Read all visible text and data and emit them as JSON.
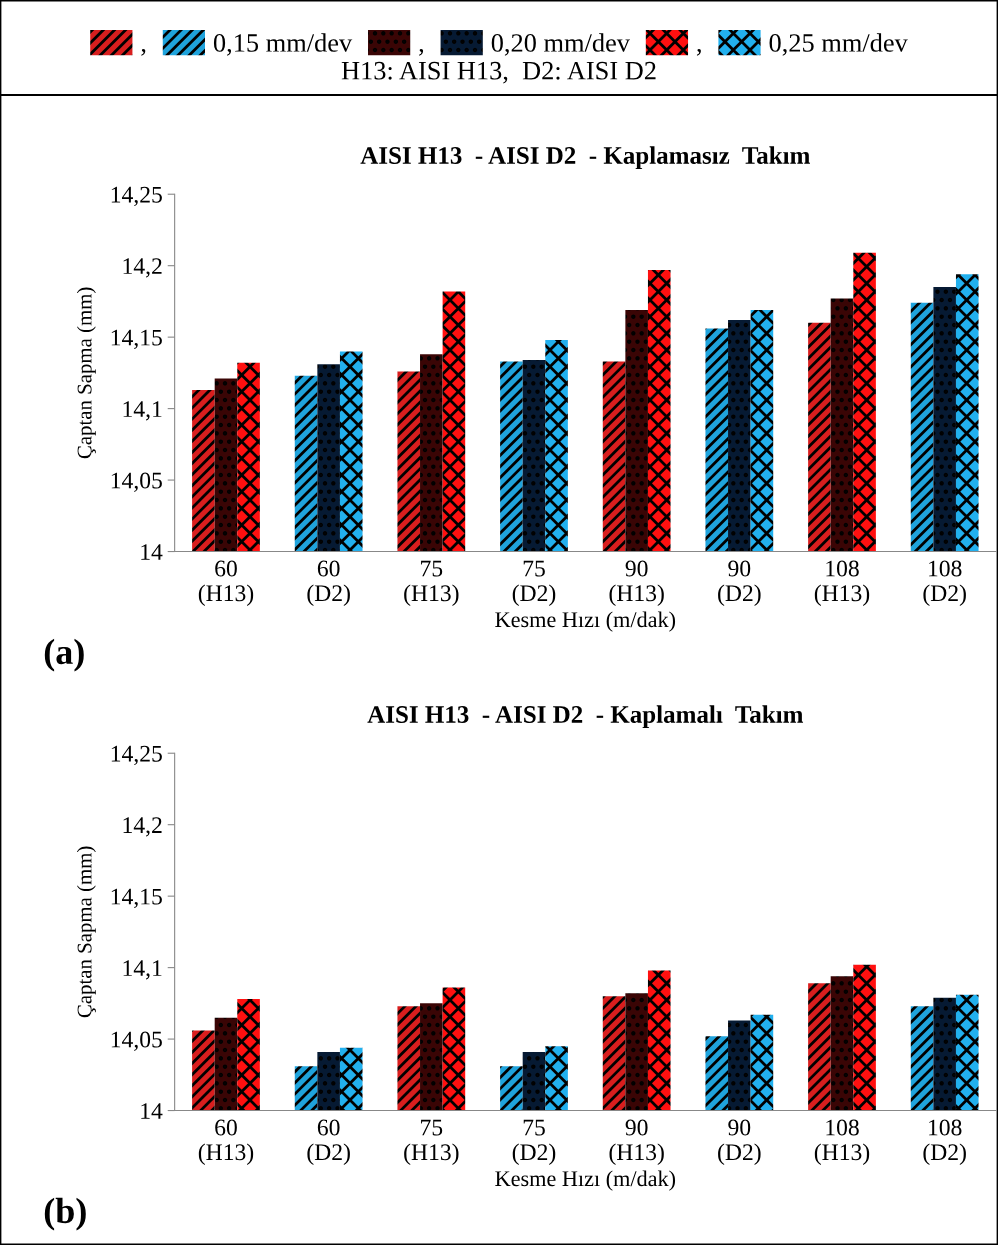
{
  "chart_data": [
    {
      "type": "bar",
      "title": "AISI H13  - AISI D2  - Kaplamasız  Takım",
      "xlabel": "Kesme Hızı (m/dak)",
      "ylabel": "Çaptan Sapma (mm)",
      "categories": [
        "60\n(H13)",
        "60\n(D2)",
        "75\n(H13)",
        "75\n(D2)",
        "90\n(H13)",
        "90\n(D2)",
        "108\n(H13)",
        "108\n(D2)"
      ],
      "series": [
        {
          "name": "0,15 mm/dev",
          "colors": [
            "#d81e1e",
            "#1fa3dc",
            "#d81e1e",
            "#1fa3dc",
            "#d81e1e",
            "#1fa3dc",
            "#d81e1e",
            "#1fa3dc"
          ],
          "values": [
            14.113,
            14.123,
            14.126,
            14.133,
            14.133,
            14.156,
            14.16,
            14.174
          ]
        },
        {
          "name": "0,20 mm/dev",
          "colors": [
            "#3a0505",
            "#061a33",
            "#3a0505",
            "#061a33",
            "#3a0505",
            "#061a33",
            "#3a0505",
            "#061a33"
          ],
          "values": [
            14.121,
            14.131,
            14.138,
            14.134,
            14.169,
            14.162,
            14.177,
            14.185
          ]
        },
        {
          "name": "0,25 mm/dev",
          "colors": [
            "#ff1010",
            "#22b0ee",
            "#ff1010",
            "#22b0ee",
            "#ff1010",
            "#22b0ee",
            "#ff1010",
            "#22b0ee"
          ],
          "values": [
            14.132,
            14.14,
            14.182,
            14.148,
            14.197,
            14.169,
            14.209,
            14.194
          ]
        }
      ],
      "ylim": [
        14,
        14.25
      ],
      "yticks": [
        {
          "value": 14,
          "label": "14"
        },
        {
          "value": 14.05,
          "label": "14,05"
        },
        {
          "value": 14.1,
          "label": "14,1"
        },
        {
          "value": 14.15,
          "label": "14,15"
        },
        {
          "value": 14.2,
          "label": "14,2"
        },
        {
          "value": 14.25,
          "label": "14,25"
        }
      ],
      "legend": "top",
      "annotations": [
        "(a)",
        "H13: AISI H13,  D2: AISI D2",
        ",",
        ",",
        ","
      ]
    },
    {
      "type": "bar",
      "title": "AISI H13  - AISI D2  - Kaplamalı  Takım",
      "xlabel": "Kesme Hızı (m/dak)",
      "ylabel": "Çaptan Sapma (mm)",
      "categories": [
        "60\n(H13)",
        "60\n(D2)",
        "75\n(H13)",
        "75\n(D2)",
        "90\n(H13)",
        "90\n(D2)",
        "108\n(H13)",
        "108\n(D2)"
      ],
      "series": [
        {
          "colors": [
            "#d81e1e",
            "#1fa3dc",
            "#d81e1e",
            "#1fa3dc",
            "#d81e1e",
            "#1fa3dc",
            "#d81e1e",
            "#1fa3dc"
          ],
          "values": [
            14.056,
            14.031,
            14.073,
            14.031,
            14.08,
            14.052,
            14.089,
            14.073
          ]
        },
        {
          "colors": [
            "#3a0505",
            "#061a33",
            "#3a0505",
            "#061a33",
            "#3a0505",
            "#061a33",
            "#3a0505",
            "#061a33"
          ],
          "values": [
            14.065,
            14.041,
            14.075,
            14.041,
            14.082,
            14.063,
            14.094,
            14.079
          ]
        },
        {
          "colors": [
            "#ff1010",
            "#22b0ee",
            "#ff1010",
            "#22b0ee",
            "#ff1010",
            "#22b0ee",
            "#ff1010",
            "#22b0ee"
          ],
          "values": [
            14.078,
            14.044,
            14.086,
            14.045,
            14.098,
            14.067,
            14.102,
            14.081
          ]
        }
      ],
      "ylim": [
        14,
        14.25
      ],
      "yticks": [
        {
          "value": 14,
          "label": "14"
        },
        {
          "value": 14.05,
          "label": "14,05"
        },
        {
          "value": 14.1,
          "label": "14,1"
        },
        {
          "value": 14.15,
          "label": "14,15"
        },
        {
          "value": 14.2,
          "label": "14,2"
        },
        {
          "value": 14.25,
          "label": "14,25"
        }
      ],
      "annotations": [
        "(b)"
      ]
    }
  ]
}
